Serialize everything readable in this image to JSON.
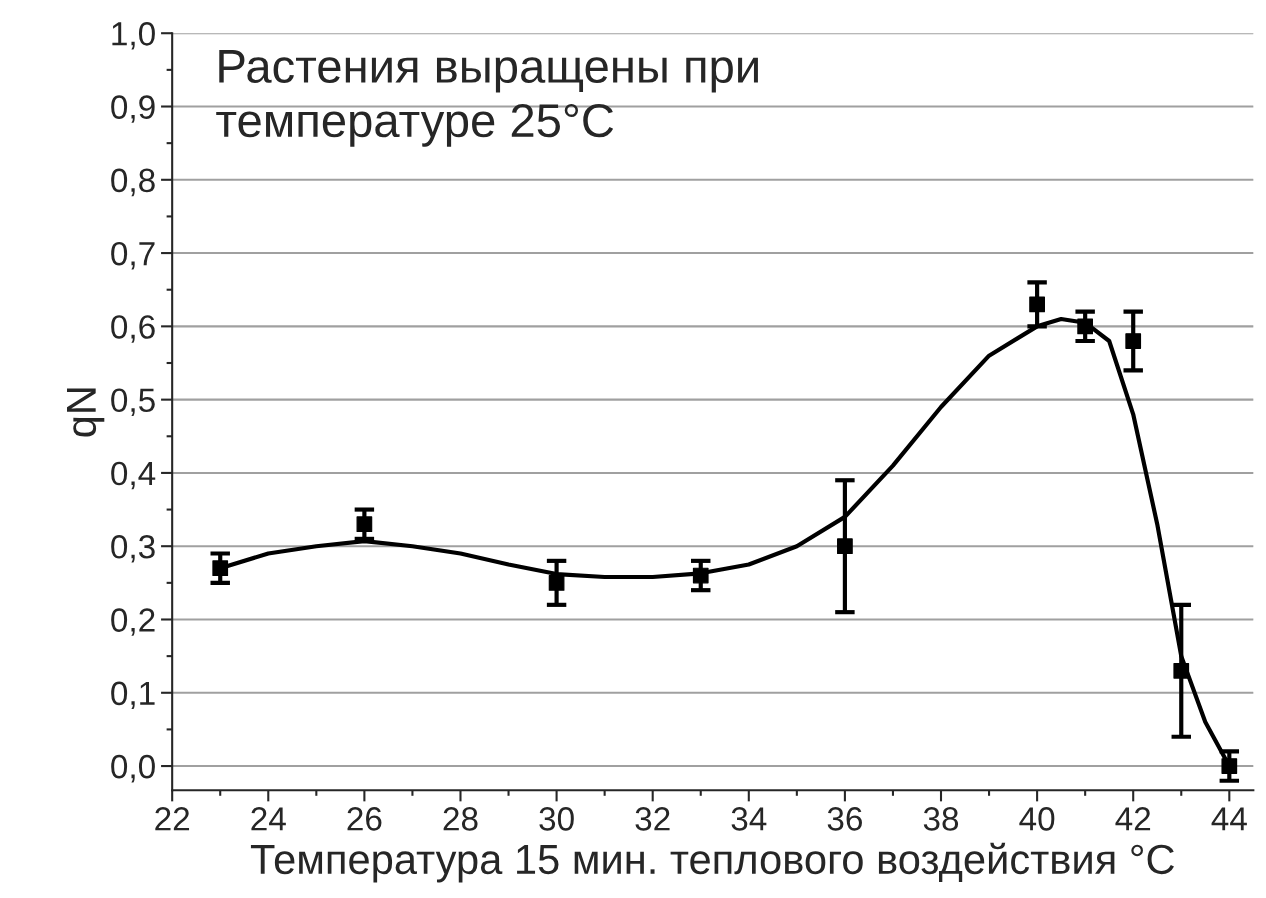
{
  "chart_data": {
    "type": "scatter",
    "xlabel": "Температура 15 мин. теплового воздействия °C",
    "ylabel": "qN",
    "annotations": [
      "Растения выращены при\nтемпературе 25°C"
    ],
    "xlim": [
      22,
      44.5
    ],
    "xticks": [
      22,
      24,
      26,
      28,
      30,
      32,
      34,
      36,
      38,
      40,
      42,
      44
    ],
    "ylim": [
      -0.033,
      1.0
    ],
    "yticks": [
      {
        "value": 0.0,
        "label": "0,0"
      },
      {
        "value": 0.1,
        "label": "0,1"
      },
      {
        "value": 0.2,
        "label": "0,2"
      },
      {
        "value": 0.3,
        "label": "0,3"
      },
      {
        "value": 0.4,
        "label": "0,4"
      },
      {
        "value": 0.5,
        "label": "0,5"
      },
      {
        "value": 0.6,
        "label": "0,6"
      },
      {
        "value": 0.7,
        "label": "0,7"
      },
      {
        "value": 0.8,
        "label": "0,8"
      },
      {
        "value": 0.9,
        "label": "0,9"
      },
      {
        "value": 1.0,
        "label": "1,0"
      }
    ],
    "grid": "y",
    "series": [
      {
        "marker": "square",
        "color": "#000000",
        "x": [
          23,
          26,
          30,
          33,
          36,
          40,
          41,
          42,
          43,
          44
        ],
        "values": [
          0.27,
          0.33,
          0.25,
          0.26,
          0.3,
          0.63,
          0.6,
          0.58,
          0.13,
          0.0
        ],
        "errors": [
          0.02,
          0.02,
          [
            0.22,
            0.28
          ],
          0.02,
          0.09,
          0.03,
          0.02,
          0.04,
          0.09,
          0.02
        ]
      },
      {
        "type": "line",
        "marker": "none",
        "color": "#000000",
        "line_style": "solid",
        "x": [
          23,
          24,
          25,
          26,
          27,
          28,
          29,
          30,
          31,
          32,
          33,
          34,
          35,
          36,
          37,
          38,
          39,
          40,
          40.5,
          41,
          41.5,
          42,
          42.5,
          43,
          43.5,
          44
        ],
        "values": [
          0.27,
          0.29,
          0.3,
          0.307,
          0.3,
          0.29,
          0.275,
          0.262,
          0.258,
          0.258,
          0.263,
          0.275,
          0.3,
          0.34,
          0.41,
          0.49,
          0.56,
          0.6,
          0.61,
          0.605,
          0.58,
          0.48,
          0.33,
          0.15,
          0.06,
          0.0
        ]
      }
    ]
  }
}
